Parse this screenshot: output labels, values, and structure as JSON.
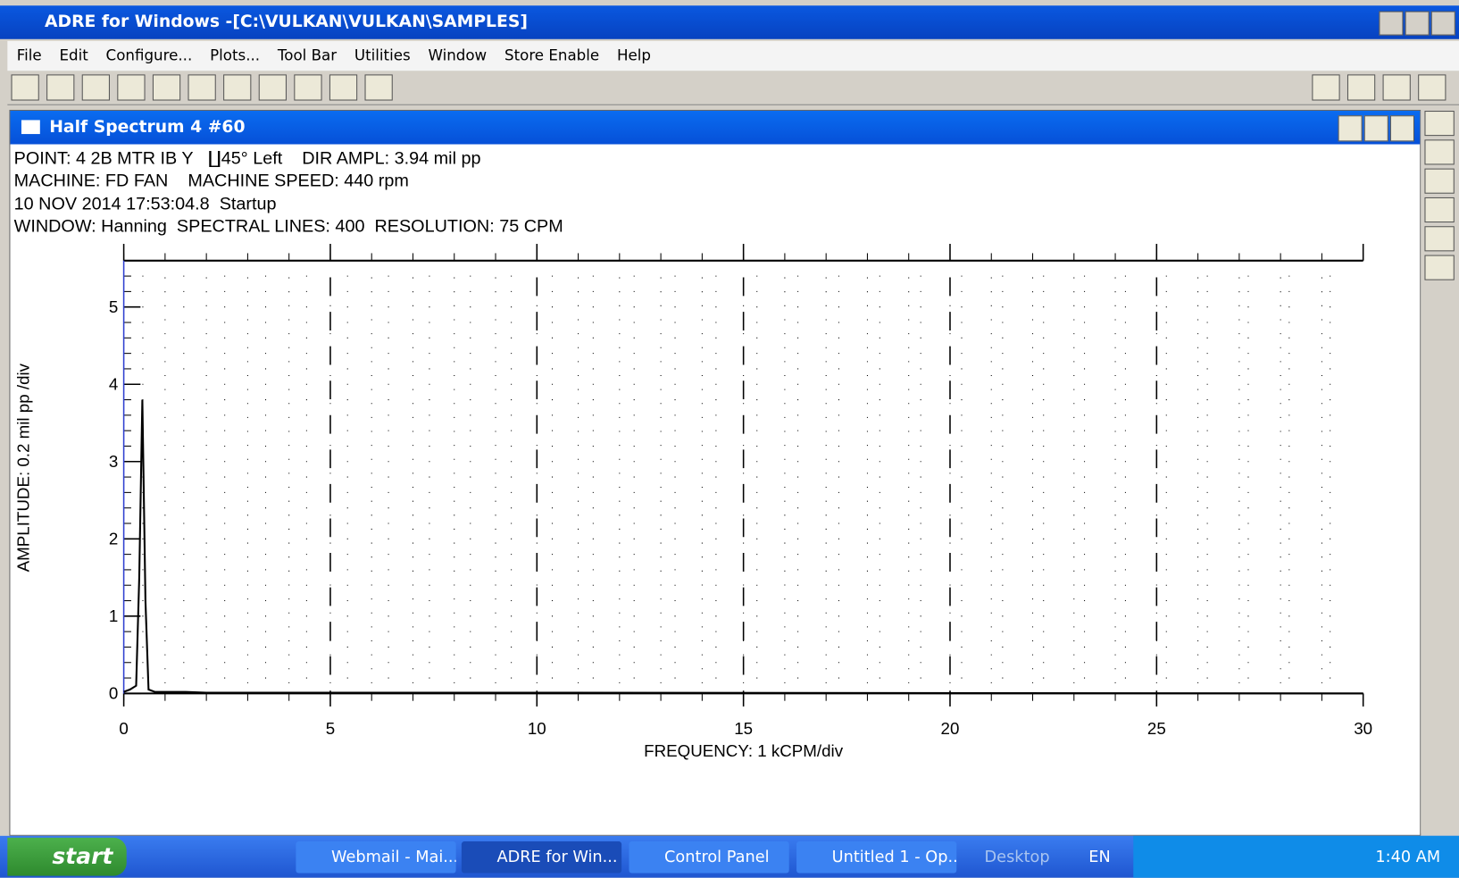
{
  "window": {
    "title": "ADRE for Windows -[C:\\VULKAN\\VULKAN\\SAMPLES]"
  },
  "menu": [
    "File",
    "Edit",
    "Configure...",
    "Plots...",
    "Tool Bar",
    "Utilities",
    "Window",
    "Store Enable",
    "Help"
  ],
  "plot_window": {
    "title": "Half Spectrum 4 #60",
    "header_lines": [
      "POINT: 4 2B MTR IB Y   ∐45° Left    DIR AMPL: 3.94 mil pp",
      "MACHINE: FD FAN    MACHINE SPEED: 440 rpm",
      "10 NOV 2014 17:53:04.8  Startup",
      "WINDOW: Hanning  SPECTRAL LINES: 400  RESOLUTION: 75 CPM"
    ]
  },
  "chart_data": {
    "type": "line",
    "x_label": "FREQUENCY: 1 kCPM/div",
    "y_label": "AMPLITUDE: 0.2 mil pp /div",
    "x": [
      0,
      0.15,
      0.3,
      0.375,
      0.45,
      0.525,
      0.6,
      0.75,
      1.0,
      1.5,
      2.0,
      3.0,
      3.5,
      6.0,
      8.3,
      30
    ],
    "series": [
      {
        "color": "#000000",
        "values": [
          0.02,
          0.05,
          0.1,
          1.5,
          3.8,
          1.2,
          0.05,
          0.02,
          0.02,
          0.02,
          0.01,
          0.01,
          0.01,
          0.01,
          0.01,
          0
        ]
      }
    ],
    "xlim": [
      0,
      30
    ],
    "xticks": [
      0,
      5,
      10,
      15,
      20,
      25,
      30
    ],
    "x_minor_step": 1,
    "ylim": [
      0,
      5.6
    ],
    "yticks": [
      0,
      1,
      2,
      3,
      4,
      5
    ],
    "y_minor_step": 0.2,
    "grid": true
  },
  "taskbar": {
    "start": "start",
    "items": [
      "Webmail - Mai...",
      "ADRE for Win...",
      "Control Panel",
      "Untitled 1 - Op..."
    ],
    "desktop": "Desktop",
    "lang": "EN",
    "clock": "1:40 AM"
  }
}
